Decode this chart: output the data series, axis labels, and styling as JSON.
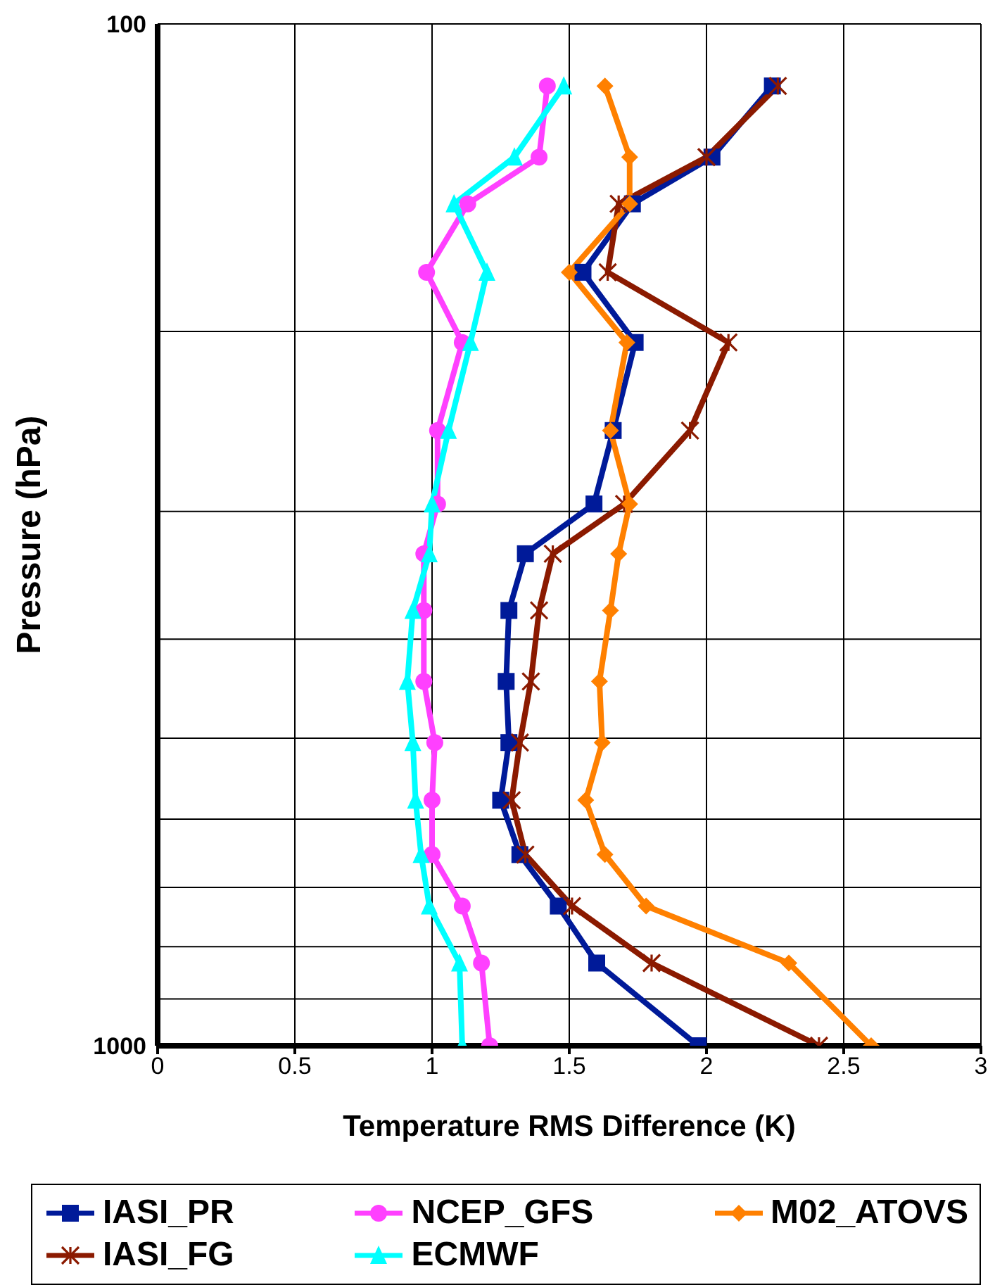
{
  "chart_data": {
    "type": "line",
    "xlabel": "Temperature RMS Difference (K)",
    "ylabel": "Pressure (hPa)",
    "series": [
      {
        "name": "IASI_PR",
        "color": "#001a99",
        "marker": "square",
        "x": [
          2.24,
          2.02,
          1.73,
          1.55,
          1.74,
          1.66,
          1.59,
          1.34,
          1.28,
          1.27,
          1.28,
          1.25,
          1.32,
          1.46,
          1.6,
          1.97
        ],
        "values": [
          115,
          135,
          150,
          175,
          205,
          250,
          295,
          330,
          375,
          440,
          505,
          575,
          650,
          730,
          830,
          1000
        ]
      },
      {
        "name": "IASI_FG",
        "color": "#8b1a00",
        "marker": "cross",
        "x": [
          2.26,
          2.0,
          1.68,
          1.64,
          2.08,
          1.94,
          1.7,
          1.44,
          1.39,
          1.36,
          1.32,
          1.29,
          1.34,
          1.51,
          1.8,
          2.41
        ],
        "values": [
          115,
          135,
          150,
          175,
          205,
          250,
          295,
          330,
          375,
          440,
          505,
          575,
          650,
          730,
          830,
          1000
        ]
      },
      {
        "name": "NCEP_GFS",
        "color": "#ff40ff",
        "marker": "circle",
        "x": [
          1.42,
          1.39,
          1.13,
          0.98,
          1.11,
          1.02,
          1.02,
          0.97,
          0.97,
          0.97,
          1.01,
          1.0,
          1.0,
          1.11,
          1.18,
          1.21
        ],
        "values": [
          115,
          135,
          150,
          175,
          205,
          250,
          295,
          330,
          375,
          440,
          505,
          575,
          650,
          730,
          830,
          1000
        ]
      },
      {
        "name": "ECMWF",
        "color": "#00ffff",
        "marker": "triangle",
        "x": [
          1.48,
          1.3,
          1.08,
          1.2,
          1.14,
          1.06,
          1.0,
          0.99,
          0.93,
          0.91,
          0.93,
          0.94,
          0.96,
          0.99,
          1.1,
          1.11
        ],
        "values": [
          115,
          135,
          150,
          175,
          205,
          250,
          295,
          330,
          375,
          440,
          505,
          575,
          650,
          730,
          830,
          1000
        ]
      },
      {
        "name": "M02_ATOVS",
        "color": "#ff8000",
        "marker": "diamond",
        "x": [
          1.63,
          1.72,
          1.72,
          1.5,
          1.71,
          1.65,
          1.72,
          1.68,
          1.65,
          1.61,
          1.62,
          1.56,
          1.63,
          1.78,
          2.3,
          2.6
        ],
        "values": [
          115,
          135,
          150,
          175,
          205,
          250,
          295,
          330,
          375,
          440,
          505,
          575,
          650,
          730,
          830,
          1000
        ]
      }
    ],
    "xlim": [
      0,
      3
    ],
    "xticks": [
      0,
      0.5,
      1,
      1.5,
      2,
      2.5,
      3
    ],
    "ylim": [
      1000,
      100
    ],
    "yticks": [
      100,
      {
        "value": 200,
        "label": null
      },
      {
        "value": 300,
        "label": null
      },
      {
        "value": 400,
        "label": null
      },
      {
        "value": 500,
        "label": null
      },
      {
        "value": 600,
        "label": null
      },
      {
        "value": 700,
        "label": null
      },
      {
        "value": 800,
        "label": null
      },
      {
        "value": 900,
        "label": null
      },
      1000
    ],
    "log": "y",
    "grid": true,
    "legend": "bottom"
  }
}
